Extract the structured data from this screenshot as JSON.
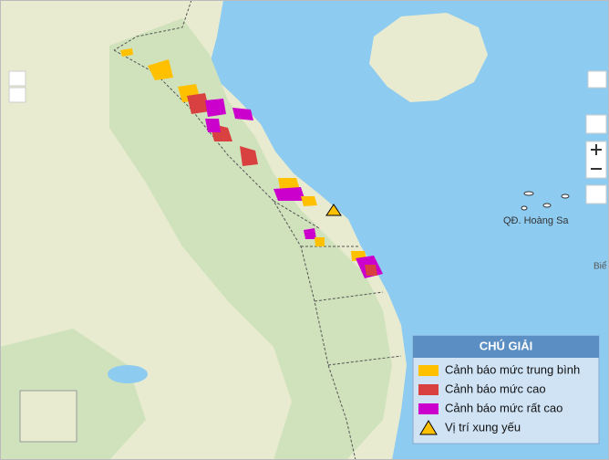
{
  "legend": {
    "title": "CHÚ GIẢI",
    "items": [
      {
        "label": "Cảnh báo mức trung bình",
        "color": "#ffc000"
      },
      {
        "label": "Cảnh báo mức cao",
        "color": "#d94040"
      },
      {
        "label": "Cảnh báo mức rất cao",
        "color": "#cc00cc"
      },
      {
        "label": "Vị trí xung yếu"
      }
    ]
  },
  "map_labels": {
    "archipelago": "QĐ. Hoàng Sa",
    "edge": "Biể"
  }
}
